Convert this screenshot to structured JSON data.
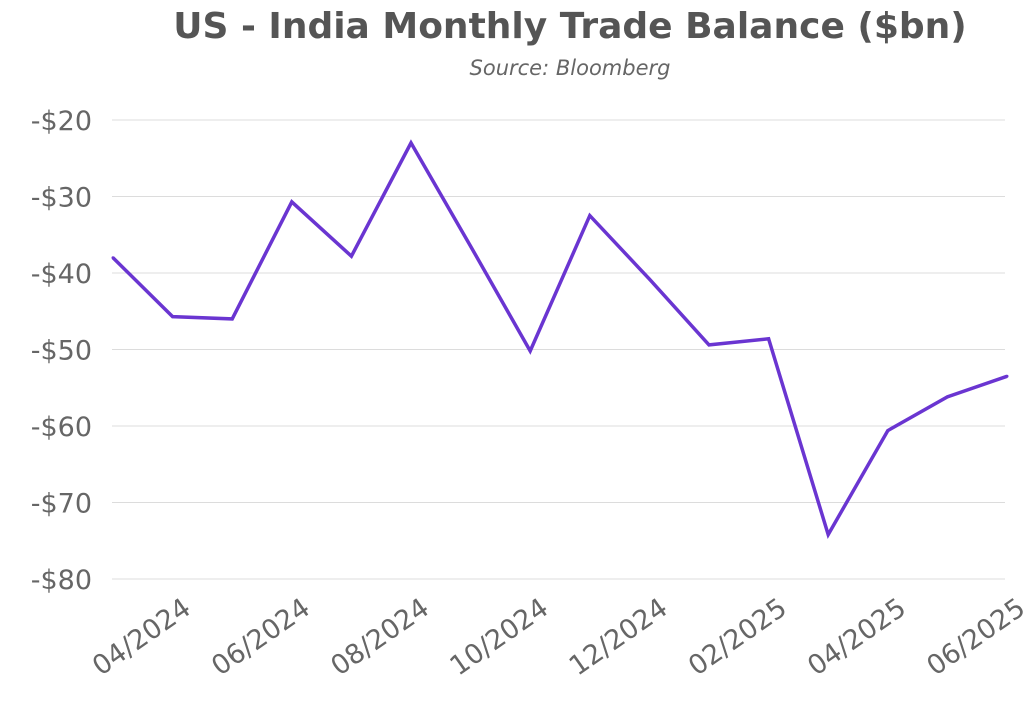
{
  "chart_data": {
    "type": "line",
    "title": "US - India Monthly Trade Balance ($bn)",
    "subtitle": "Source: Bloomberg",
    "xlabel": "",
    "ylabel": "",
    "ylim": [
      -80,
      -20
    ],
    "yticks": [
      -20,
      -30,
      -40,
      -50,
      -60,
      -70,
      -80
    ],
    "ytick_labels": [
      "-$20",
      "-$30",
      "-$40",
      "-$50",
      "-$60",
      "-$70",
      "-$80"
    ],
    "xtick_labels": [
      "04/2024",
      "06/2024",
      "08/2024",
      "10/2024",
      "12/2024",
      "02/2025",
      "04/2025",
      "06/2025"
    ],
    "grid": true,
    "legend": "none",
    "line_color": "#6a35d1",
    "series": [
      {
        "x": [
          "03/2024",
          "04/2024",
          "05/2024",
          "06/2024",
          "07/2024",
          "08/2024",
          "09/2024",
          "10/2024",
          "11/2024",
          "12/2024",
          "01/2025",
          "02/2025",
          "03/2025",
          "04/2025",
          "05/2025",
          "06/2025"
        ],
        "values": [
          -38.0,
          -45.7,
          -46.0,
          -30.7,
          -37.8,
          -23.0,
          -36.5,
          -50.2,
          -32.5,
          -40.8,
          -49.4,
          -48.6,
          -74.2,
          -60.6,
          -56.2,
          -53.5
        ]
      }
    ]
  }
}
